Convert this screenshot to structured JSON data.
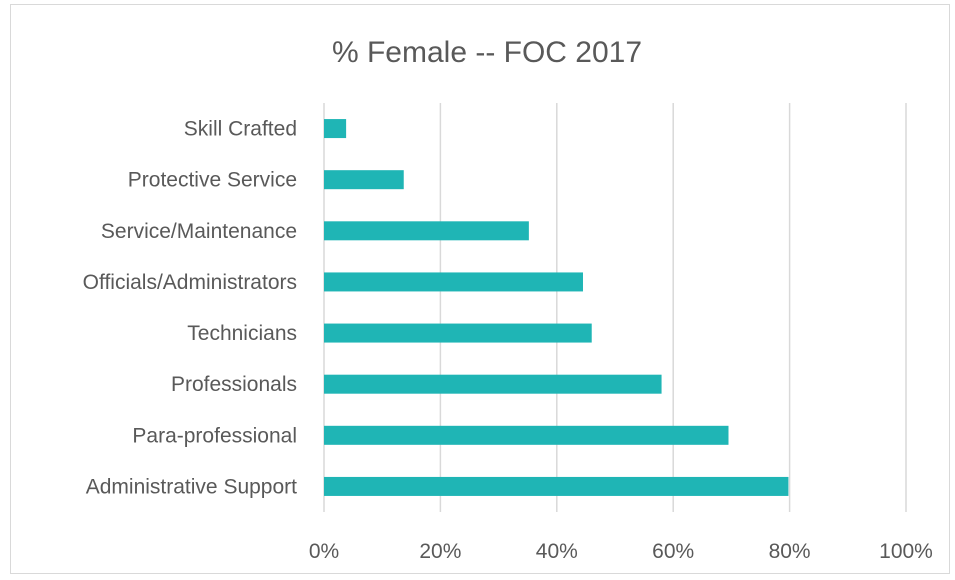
{
  "chart_data": {
    "type": "bar",
    "orientation": "horizontal",
    "title": "% Female -- FOC 2017",
    "categories": [
      "Skill Crafted",
      "Protective Service",
      "Service/Maintenance",
      "Officials/Administrators",
      "Technicians",
      "Professionals",
      "Para-professional",
      "Administrative Support"
    ],
    "values": [
      3.8,
      13.7,
      35.2,
      44.5,
      46.0,
      58.0,
      69.5,
      79.8
    ],
    "xlim": [
      0,
      100
    ],
    "x_ticks": [
      "0%",
      "20%",
      "40%",
      "60%",
      "80%",
      "100%"
    ],
    "grid": "vertical",
    "bar_color": "#1fb5b5",
    "grid_color": "#d9d9d9"
  }
}
